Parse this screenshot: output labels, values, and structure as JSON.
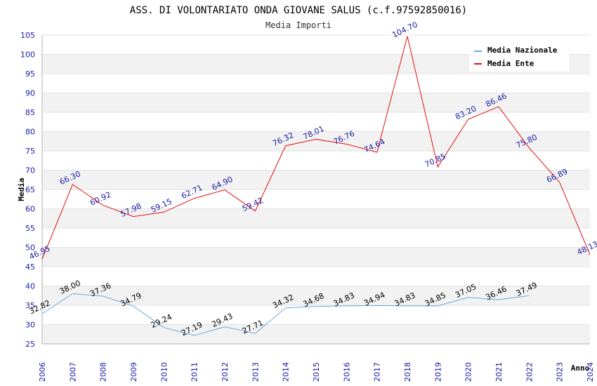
{
  "chart_data": {
    "type": "line",
    "title": "ASS. DI VOLONTARIATO ONDA GIOVANE SALUS (c.f.97592850016)",
    "subtitle": "Media Importi",
    "xlabel": "Anno",
    "ylabel": "Media",
    "x": [
      2006,
      2007,
      2008,
      2009,
      2010,
      2011,
      2012,
      2013,
      2014,
      2015,
      2016,
      2017,
      2018,
      2019,
      2020,
      2021,
      2022,
      2023,
      2024
    ],
    "ylim": [
      25,
      105
    ],
    "yticks": [
      25,
      30,
      35,
      40,
      45,
      50,
      55,
      60,
      65,
      70,
      75,
      80,
      85,
      90,
      95,
      100,
      105
    ],
    "grid": true,
    "legend_position": "top-right",
    "series": [
      {
        "name": "Media Nazionale",
        "color": "#6aa8e0",
        "label_color": "#000000",
        "values": [
          32.82,
          38.0,
          37.36,
          34.79,
          29.24,
          27.19,
          29.43,
          27.71,
          34.32,
          34.68,
          34.83,
          34.94,
          34.83,
          34.85,
          37.05,
          36.46,
          37.49,
          null,
          null
        ]
      },
      {
        "name": "Media Ente",
        "color": "#e01010",
        "label_color": "#1a1aa6",
        "values": [
          46.95,
          66.3,
          60.92,
          57.98,
          59.15,
          62.71,
          64.9,
          59.42,
          76.32,
          78.01,
          76.76,
          74.64,
          104.7,
          70.85,
          83.2,
          86.46,
          75.8,
          66.89,
          48.13
        ]
      }
    ]
  }
}
